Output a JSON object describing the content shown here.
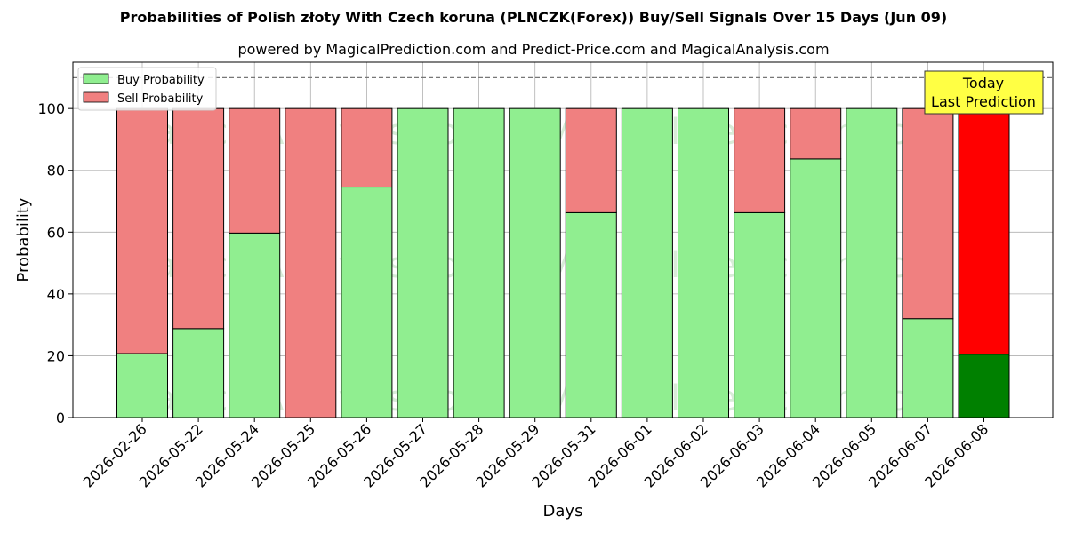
{
  "chart_data": {
    "type": "bar",
    "title": "Probabilities of Polish złoty With Czech koruna (PLNCZK(Forex)) Buy/Sell Signals Over 15 Days (Jun 09)",
    "subtitle": "powered by MagicalPrediction.com and Predict-Price.com and MagicalAnalysis.com",
    "xlabel": "Days",
    "ylabel": "Probability",
    "ylim": [
      0,
      115
    ],
    "yticks": [
      0,
      20,
      40,
      60,
      80,
      100
    ],
    "reference_line": 110,
    "grid": true,
    "legend_position": "top-left",
    "stacked": true,
    "categories": [
      "2026-02-26",
      "2026-05-22",
      "2026-05-24",
      "2026-05-25",
      "2026-05-26",
      "2026-05-27",
      "2026-05-28",
      "2026-05-29",
      "2026-05-31",
      "2026-06-01",
      "2026-06-02",
      "2026-06-03",
      "2026-06-04",
      "2026-06-05",
      "2026-06-07",
      "2026-06-08"
    ],
    "series": [
      {
        "name": "Buy Probability",
        "color": "#90ee90",
        "values": [
          20.7,
          28.8,
          59.7,
          0,
          74.6,
          100,
          100,
          100,
          66.3,
          100,
          100,
          66.3,
          83.7,
          100,
          32.0,
          20.5
        ]
      },
      {
        "name": "Sell Probability",
        "color": "#f08080",
        "values": [
          79.3,
          71.2,
          40.3,
          100,
          25.4,
          0,
          0,
          0,
          33.7,
          0,
          0,
          33.7,
          16.3,
          0,
          68.0,
          79.5
        ]
      }
    ],
    "highlight": {
      "index": 15,
      "buy_color": "#008000",
      "sell_color": "#ff0000"
    },
    "annotation": {
      "line1": "Today",
      "line2": "Last Prediction",
      "background": "#ffff44"
    },
    "watermarks": [
      "MagicalAnalysis.com",
      "MagicalPrediction.com"
    ]
  }
}
